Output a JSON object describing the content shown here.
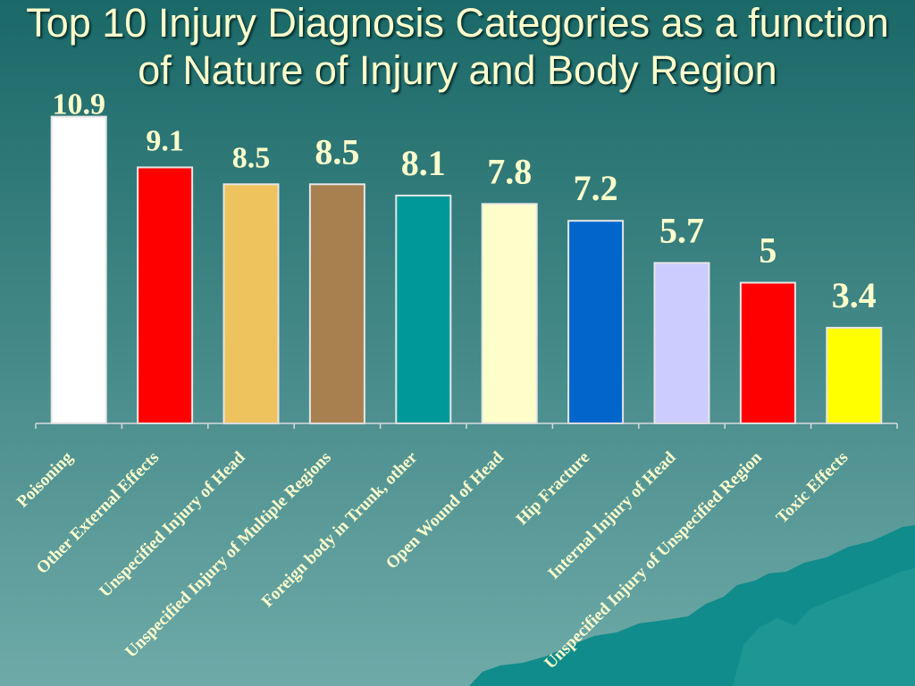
{
  "colors": {
    "background_top": "#1a6868",
    "background_bottom": "#6eaaa8",
    "title": "#ffffcc",
    "labels": "#ffffcc",
    "axis": "#d9d9d9",
    "bar_outline": "#e6e6e6",
    "decoration": "#0f8c8b",
    "decoration_highlight": "#2a9e9c"
  },
  "chart_data": {
    "type": "bar",
    "title": "Top 10 Injury Diagnosis Categories as a function of Nature of Injury and Body Region",
    "xlabel": "",
    "ylabel": "",
    "categories": [
      "Poisoning",
      "Other External Effects",
      "Unspecified Injury of Head",
      "Unspecified Injury of Multiple Regions",
      "Foreign body in Trunk, other",
      "Open Wound of Head",
      "Hip Fracture",
      "Internal Injury of Head",
      "Unspecified Injury of Unspecified Region",
      "Toxic Effects"
    ],
    "values": [
      10.9,
      9.1,
      8.5,
      8.5,
      8.1,
      7.8,
      7.2,
      5.7,
      5,
      3.4
    ],
    "colors": [
      "#ffffff",
      "#ff0000",
      "#eec35e",
      "#a8804f",
      "#009999",
      "#ffffcc",
      "#0066cc",
      "#ccccff",
      "#ff0000",
      "#ffff00"
    ],
    "ylim": [
      0,
      12
    ],
    "grid": false,
    "data_labels": true
  }
}
